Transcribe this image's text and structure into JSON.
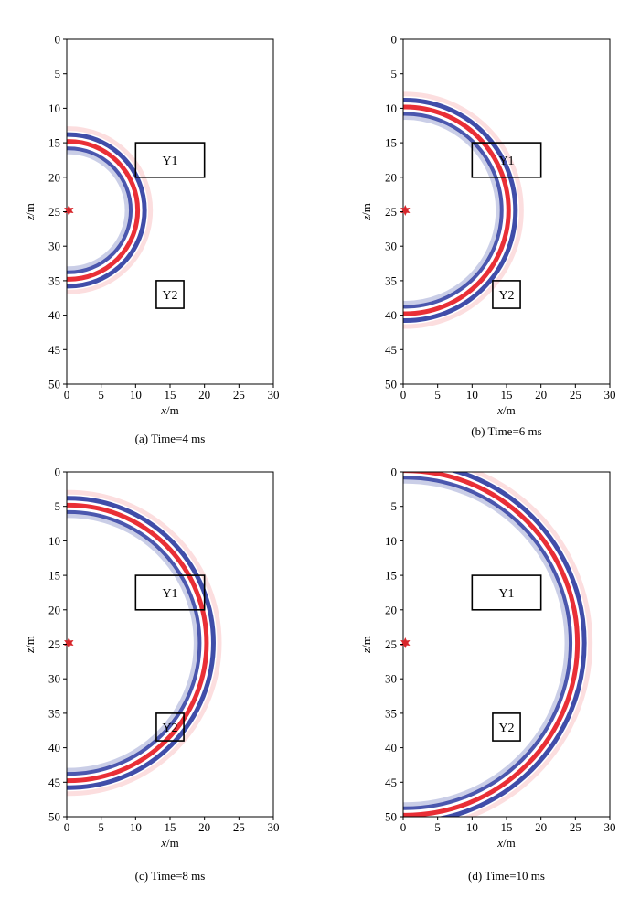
{
  "colors": {
    "positive": "#e8242b",
    "negative": "#2b3aa0",
    "source_marker": "#d7262b",
    "frame": "#000000"
  },
  "chart_data": [
    {
      "type": "wavefield-snapshot",
      "caption": "(a) Time=4 ms",
      "time_ms": 4,
      "xlabel": "x/m",
      "ylabel": "z/m",
      "xlim": [
        0,
        30
      ],
      "ylim": [
        50,
        0
      ],
      "xticks": [
        0,
        5,
        10,
        15,
        20,
        25,
        30
      ],
      "yticks": [
        0,
        5,
        10,
        15,
        20,
        25,
        30,
        35,
        40,
        45,
        50
      ],
      "source": {
        "x": 0.3,
        "z": 24.8
      },
      "boxes": [
        {
          "label": "Y1",
          "x0": 10,
          "x1": 20,
          "z0": 15,
          "z1": 20
        },
        {
          "label": "Y2",
          "x0": 13,
          "x1": 17,
          "z0": 35,
          "z1": 39
        }
      ],
      "wavefronts": [
        {
          "cx": 0.3,
          "cz": 24.8,
          "r": 10
        }
      ]
    },
    {
      "type": "wavefield-snapshot",
      "caption": "(b) Time=6 ms",
      "time_ms": 6,
      "xlabel": "x/m",
      "ylabel": "z/m",
      "xlim": [
        0,
        30
      ],
      "ylim": [
        50,
        0
      ],
      "xticks": [
        0,
        5,
        10,
        15,
        20,
        25,
        30
      ],
      "yticks": [
        0,
        5,
        10,
        15,
        20,
        25,
        30,
        35,
        40,
        45,
        50
      ],
      "source": {
        "x": 0.3,
        "z": 24.8
      },
      "boxes": [
        {
          "label": "Y1",
          "x0": 10,
          "x1": 20,
          "z0": 15,
          "z1": 20
        },
        {
          "label": "Y2",
          "x0": 13,
          "x1": 17,
          "z0": 35,
          "z1": 39
        }
      ],
      "wavefronts": [
        {
          "cx": 0.3,
          "cz": 24.8,
          "r": 15
        }
      ]
    },
    {
      "type": "wavefield-snapshot",
      "caption": "(c) Time=8 ms",
      "time_ms": 8,
      "xlabel": "x/m",
      "ylabel": "z/m",
      "xlim": [
        0,
        30
      ],
      "ylim": [
        50,
        0
      ],
      "xticks": [
        0,
        5,
        10,
        15,
        20,
        25,
        30
      ],
      "yticks": [
        0,
        5,
        10,
        15,
        20,
        25,
        30,
        35,
        40,
        45,
        50
      ],
      "source": {
        "x": 0.3,
        "z": 24.8
      },
      "boxes": [
        {
          "label": "Y1",
          "x0": 10,
          "x1": 20,
          "z0": 15,
          "z1": 20
        },
        {
          "label": "Y2",
          "x0": 13,
          "x1": 17,
          "z0": 35,
          "z1": 39
        }
      ],
      "wavefronts": [
        {
          "cx": 0.3,
          "cz": 24.8,
          "r": 20
        }
      ]
    },
    {
      "type": "wavefield-snapshot",
      "caption": "(d) Time=10 ms",
      "time_ms": 10,
      "xlabel": "x/m",
      "ylabel": "z/m",
      "xlim": [
        0,
        30
      ],
      "ylim": [
        50,
        0
      ],
      "xticks": [
        0,
        5,
        10,
        15,
        20,
        25,
        30
      ],
      "yticks": [
        0,
        5,
        10,
        15,
        20,
        25,
        30,
        35,
        40,
        45,
        50
      ],
      "source": {
        "x": 0.3,
        "z": 24.8
      },
      "boxes": [
        {
          "label": "Y1",
          "x0": 10,
          "x1": 20,
          "z0": 15,
          "z1": 20
        },
        {
          "label": "Y2",
          "x0": 13,
          "x1": 17,
          "z0": 35,
          "z1": 39
        }
      ],
      "wavefronts": [
        {
          "cx": 0.3,
          "cz": 24.8,
          "r": 25
        }
      ]
    }
  ]
}
